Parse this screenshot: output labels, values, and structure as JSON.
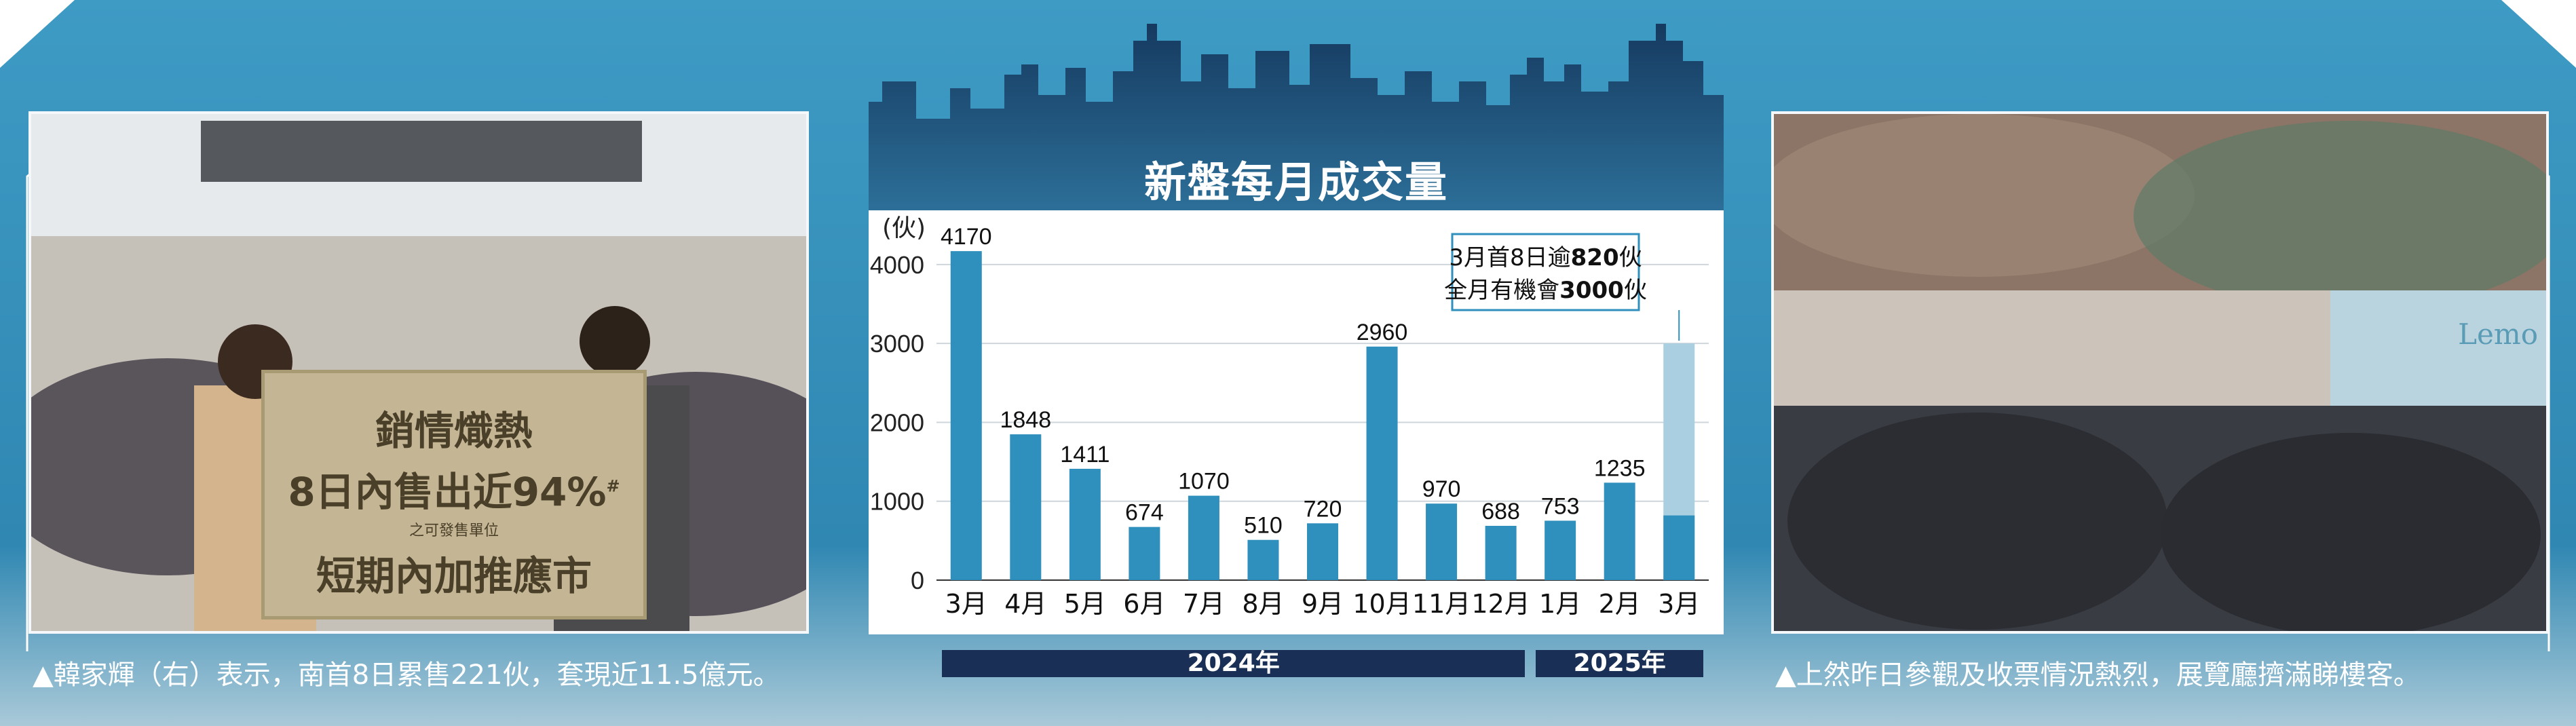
{
  "title": "新盤每月成交量",
  "colors": {
    "background": "#3a8db5",
    "bar": "#2f8fbd",
    "bar_projected": "#a9cfe0",
    "city": "#15395f",
    "year_bar": "#1a2f55"
  },
  "chart_data": {
    "type": "bar",
    "title": "新盤每月成交量",
    "ylabel": "(伙)",
    "ylim": [
      0,
      4300
    ],
    "yticks": [
      0,
      1000,
      2000,
      3000,
      4000
    ],
    "categories": [
      "3月",
      "4月",
      "5月",
      "6月",
      "7月",
      "8月",
      "9月",
      "10月",
      "11月",
      "12月",
      "1月",
      "2月",
      "3月"
    ],
    "values": [
      4170,
      1848,
      1411,
      674,
      1070,
      510,
      720,
      2960,
      970,
      688,
      753,
      1235,
      820
    ],
    "projected_last": 3000,
    "value_labels": [
      "4170",
      "1848",
      "1411",
      "674",
      "1070",
      "510",
      "720",
      "2960",
      "970",
      "688",
      "753",
      "1235",
      ""
    ],
    "year_groups": [
      {
        "label": "2024年",
        "from": 0,
        "to": 9
      },
      {
        "label": "2025年",
        "from": 10,
        "to": 12
      }
    ],
    "grid": true,
    "annotation": {
      "line1": "3月首8日逾",
      "value1": "820",
      "unit1": "伙",
      "line2": "全月有機會",
      "value2": "3000",
      "unit2": "伙"
    }
  },
  "left_photo": {
    "sign_line1": "銷情熾熱",
    "sign_line2": "8日內售出近94%",
    "sign_mark": "#",
    "sign_note": "之可發售單位",
    "sign_line3": "短期內加推應市",
    "caption": "▲韓家輝（右）表示，南首8日累售221伙，套現近11.5億元。"
  },
  "right_photo": {
    "sign_text": "Lemo",
    "caption": "▲上然昨日參觀及收票情況熱烈，展覽廳擠滿睇樓客。"
  }
}
